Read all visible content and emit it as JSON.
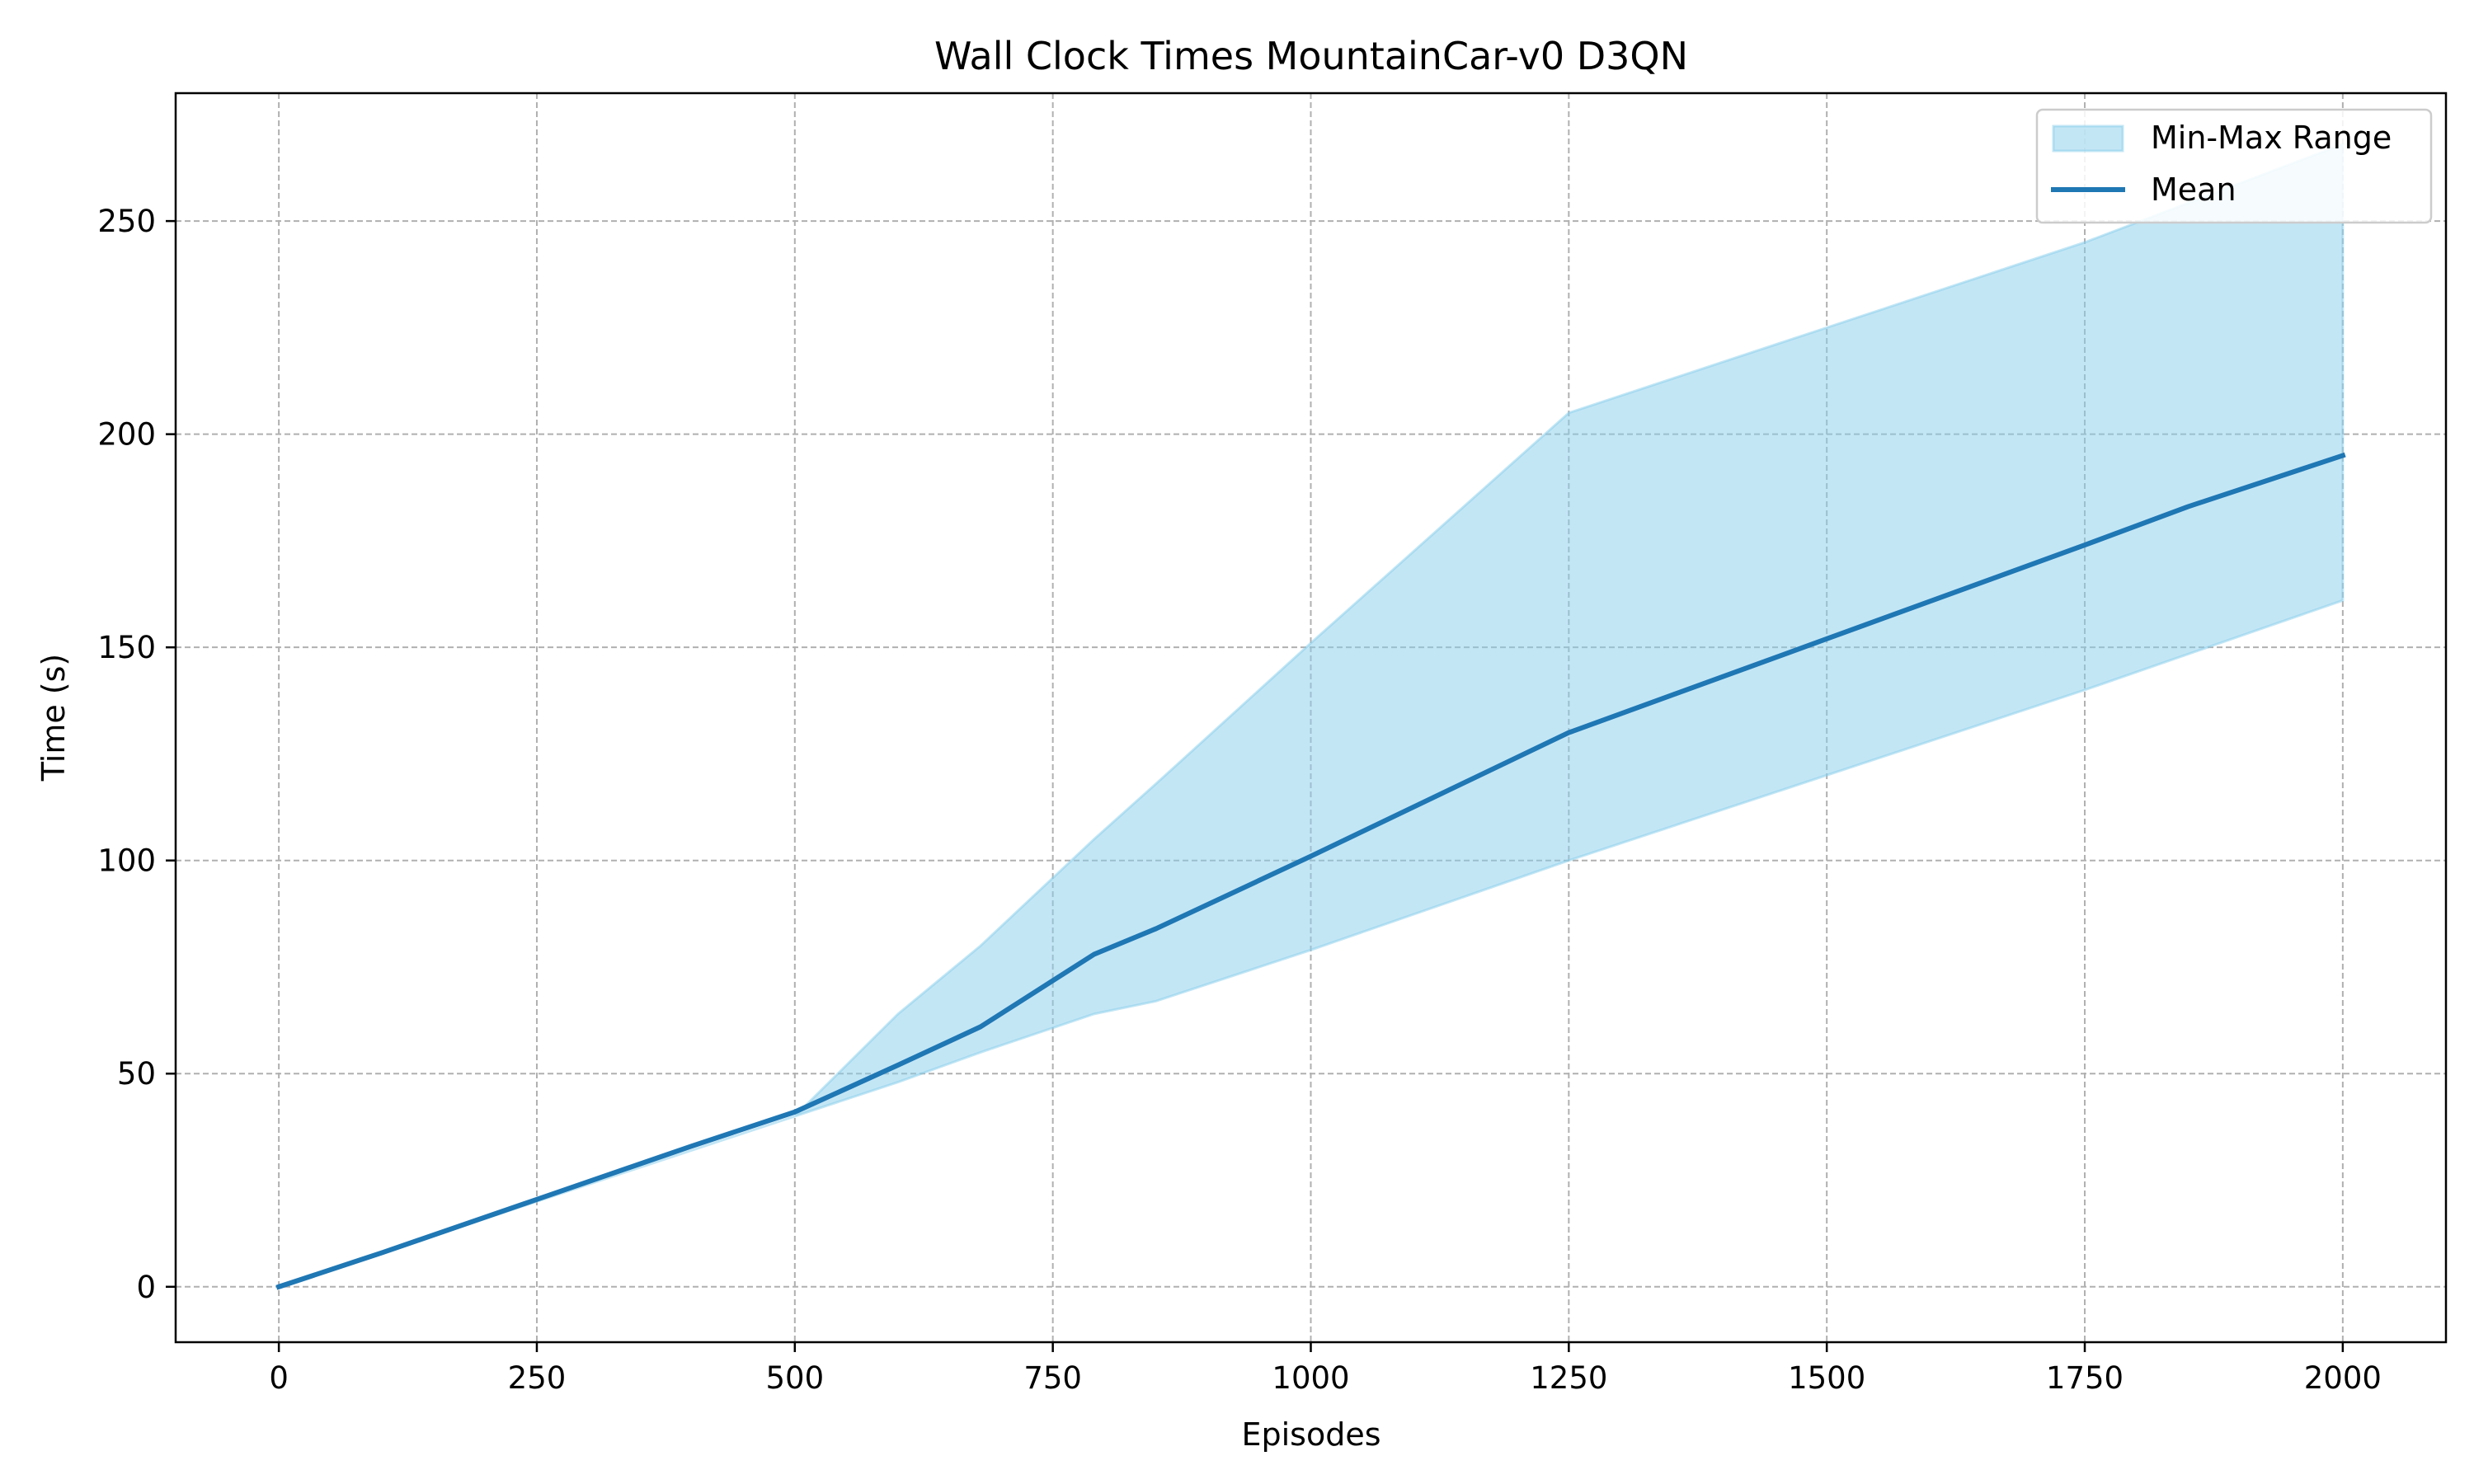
{
  "chart_data": {
    "type": "line",
    "title": "Wall Clock Times MountainCar-v0 D3QN",
    "xlabel": "Episodes",
    "ylabel": "Time (s)",
    "xlim": [
      -100,
      2100
    ],
    "ylim": [
      -13,
      280
    ],
    "xticks": [
      0,
      250,
      500,
      750,
      1000,
      1250,
      1500,
      1750,
      2000
    ],
    "yticks": [
      0,
      50,
      100,
      150,
      200,
      250
    ],
    "grid": true,
    "legend_position": "top-right",
    "colors": {
      "mean": "#1f77b4",
      "band": "#87ceeb"
    },
    "band": {
      "name": "Min-Max Range",
      "x": [
        0,
        100,
        250,
        400,
        500,
        600,
        680,
        790,
        850,
        1000,
        1250,
        1500,
        1750,
        2000
      ],
      "min": [
        0,
        8,
        20,
        32,
        40,
        48,
        55,
        64,
        67,
        79,
        100,
        120,
        140,
        161
      ],
      "max": [
        0,
        8,
        20,
        32,
        40,
        64,
        80,
        105,
        118,
        151,
        205,
        225,
        245,
        268
      ]
    },
    "series": [
      {
        "name": "Mean",
        "x": [
          0,
          100,
          250,
          400,
          500,
          600,
          680,
          790,
          850,
          1000,
          1250,
          1500,
          1750,
          1850,
          2000
        ],
        "y": [
          0,
          8,
          20.5,
          33,
          41,
          52,
          61,
          78,
          84,
          101,
          130,
          152,
          174,
          183,
          195
        ]
      }
    ]
  }
}
